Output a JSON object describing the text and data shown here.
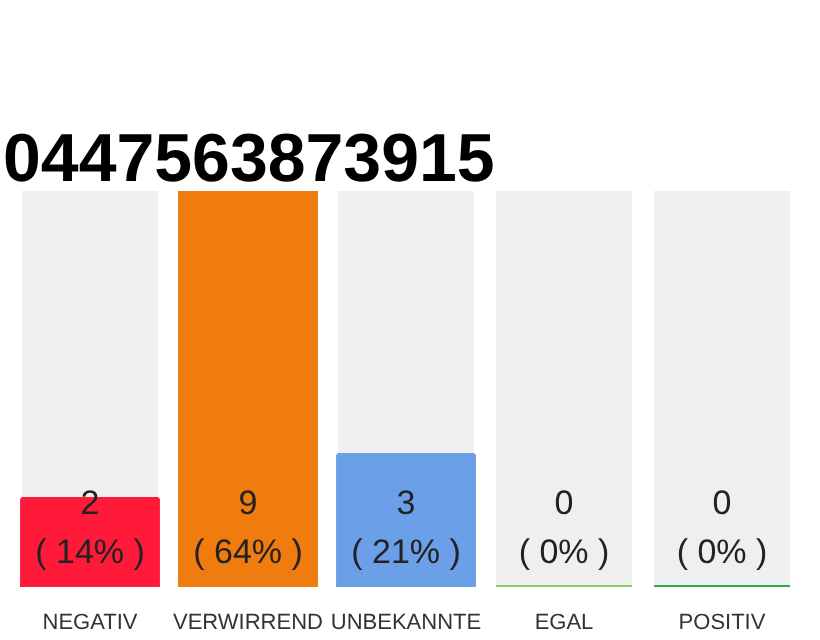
{
  "chart_data": {
    "type": "bar",
    "title": "0447563873915",
    "categories": [
      "NEGATIV",
      "VERWIRREND",
      "UNBEKANNTE",
      "EGAL",
      "POSITIV"
    ],
    "values": [
      2,
      9,
      3,
      0,
      0
    ],
    "colors": [
      "#ff1a3a",
      "#f07c0f",
      "#6b9fe8",
      "#8fce6f",
      "#2ea84a"
    ],
    "value_labels": [
      "2\n( 14% )",
      "9\n( 64% )",
      "3\n( 21% )",
      "0\n( 0% )",
      "0\n( 0% )"
    ],
    "grid": false
  }
}
